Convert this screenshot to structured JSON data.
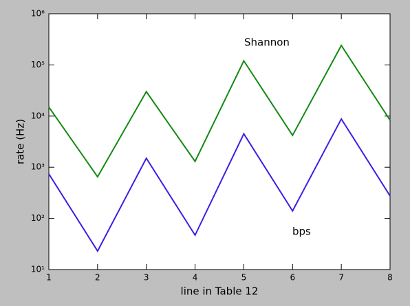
{
  "chart_data": {
    "type": "line",
    "xlabel": "line in Table 12",
    "ylabel": "rate (Hz)",
    "x": [
      1,
      2,
      3,
      4,
      5,
      6,
      7,
      8
    ],
    "series": [
      {
        "name": "Shannon",
        "color": "#138a13",
        "values": [
          15000,
          650,
          30000,
          1300,
          120000,
          4200,
          240000,
          8300
        ]
      },
      {
        "name": "bps",
        "color": "#3c1ee6",
        "values": [
          740,
          23,
          1500,
          47,
          4500,
          140,
          8800,
          275
        ]
      }
    ],
    "xlim": [
      1,
      8
    ],
    "xticks": [
      1,
      2,
      3,
      4,
      5,
      6,
      7,
      8
    ],
    "ylim": [
      10,
      1000000
    ],
    "yscale": "log",
    "yticks": [
      {
        "value": 10,
        "label": "10¹"
      },
      {
        "value": 100,
        "label": "10²"
      },
      {
        "value": 1000,
        "label": "10³"
      },
      {
        "value": 10000,
        "label": "10⁴"
      },
      {
        "value": 100000,
        "label": "10⁵"
      },
      {
        "value": 1000000,
        "label": "10⁶"
      }
    ]
  }
}
